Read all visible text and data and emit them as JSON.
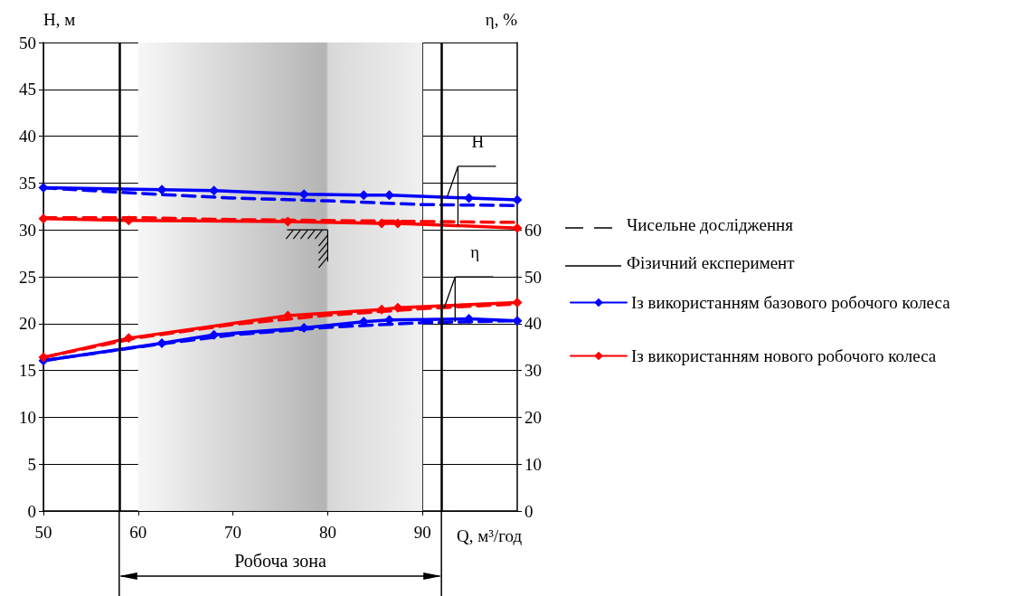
{
  "chart_data": {
    "type": "line",
    "xlabel": "Q, м³/год",
    "ylabel": "H, м",
    "y2label": "η, %",
    "xlim": [
      50,
      100
    ],
    "xticks": [
      50,
      60,
      70,
      80,
      90
    ],
    "ylim": [
      0,
      50
    ],
    "yticks": [
      0,
      5,
      10,
      15,
      20,
      25,
      30,
      35,
      40,
      45,
      50
    ],
    "y2lim": [
      0,
      100
    ],
    "y2ticks": [
      0,
      10,
      20,
      30,
      40,
      50,
      60
    ],
    "grid": true,
    "legend": "right",
    "bands": [
      {
        "axis": "x",
        "from": 60,
        "to": 90,
        "color": "#b4b4b4"
      }
    ],
    "ref_lines": [
      {
        "axis": "x",
        "value": 58,
        "color": "#000000"
      },
      {
        "axis": "x",
        "value": 92,
        "color": "#000000"
      }
    ],
    "annotations": [
      "Чисельне дослідження",
      "Фізичний експеримент",
      {
        "text": "H",
        "x": 92.6,
        "y": 33.5
      },
      {
        "text": "η",
        "x": 92.3,
        "y": 21.7
      },
      "Робоча зона"
    ],
    "series": [
      {
        "name": "Із використанням базового робочого колеса",
        "color": "#0000ff",
        "marker": "diamond",
        "line_style": "solid",
        "x": [
          50,
          62.5,
          68,
          77.5,
          83.8,
          86.5,
          94.9,
          100
        ],
        "values": [
          34.5,
          34.3,
          34.2,
          33.8,
          33.7,
          33.7,
          33.4,
          33.2
        ]
      },
      {
        "color": "#0000ff",
        "line_style": "dashed",
        "x": [
          50,
          60,
          70,
          80,
          90,
          100
        ],
        "values": [
          34.5,
          33.9,
          33.4,
          33.1,
          32.7,
          32.6
        ]
      },
      {
        "name": "Із використанням нового робочого колеса",
        "color": "#ff0000",
        "marker": "diamond",
        "line_style": "solid",
        "x": [
          50,
          59,
          75.8,
          85.7,
          87.4,
          100
        ],
        "values": [
          31.2,
          31.0,
          30.9,
          30.7,
          30.7,
          30.2
        ]
      },
      {
        "color": "#ff0000",
        "line_style": "dashed",
        "x": [
          50,
          60,
          70,
          80,
          90,
          100
        ],
        "values": [
          31.3,
          31.3,
          31.1,
          31.0,
          30.9,
          30.8
        ]
      },
      {
        "color": "#0000ff",
        "marker": "diamond",
        "line_style": "solid",
        "axis": "y2",
        "x": [
          50,
          62.5,
          68,
          77.5,
          83.8,
          86.5,
          94.9,
          100
        ],
        "values": [
          32.1,
          35.8,
          37.6,
          39.1,
          40.4,
          40.8,
          41.0,
          40.6
        ]
      },
      {
        "color": "#0000ff",
        "line_style": "dashed",
        "axis": "y2",
        "x": [
          50,
          60,
          70,
          80,
          90,
          100
        ],
        "values": [
          32.1,
          35.0,
          37.6,
          39.2,
          40.2,
          40.6
        ]
      },
      {
        "color": "#ff0000",
        "marker": "diamond",
        "line_style": "solid",
        "axis": "y2",
        "x": [
          50,
          59,
          75.8,
          85.7,
          87.4,
          100
        ],
        "values": [
          32.8,
          36.9,
          41.7,
          43.0,
          43.4,
          44.5
        ]
      },
      {
        "color": "#ff0000",
        "line_style": "dashed",
        "axis": "y2",
        "x": [
          50,
          60,
          70,
          80,
          90,
          100
        ],
        "values": [
          32.8,
          37.0,
          39.8,
          41.8,
          43.2,
          44.2
        ]
      }
    ]
  }
}
